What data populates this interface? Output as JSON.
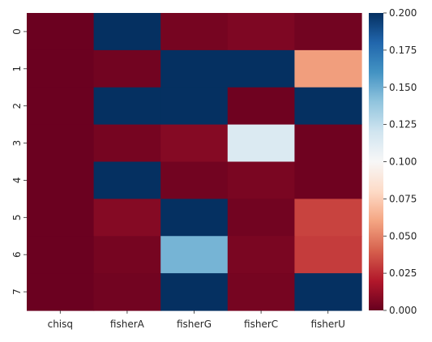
{
  "chart_data": {
    "type": "heatmap",
    "title": "",
    "xlabel": "",
    "ylabel": "",
    "x_categories": [
      "chisq",
      "fisherA",
      "fisherG",
      "fisherC",
      "fisherU"
    ],
    "y_categories": [
      "0",
      "1",
      "2",
      "3",
      "4",
      "5",
      "6",
      "7"
    ],
    "values": [
      [
        0.001,
        0.2,
        0.004,
        0.006,
        0.003
      ],
      [
        0.001,
        0.003,
        0.2,
        0.2,
        0.058
      ],
      [
        0.001,
        0.2,
        0.2,
        0.002,
        0.2
      ],
      [
        0.001,
        0.004,
        0.008,
        0.115,
        0.002
      ],
      [
        0.001,
        0.2,
        0.003,
        0.005,
        0.002
      ],
      [
        0.001,
        0.008,
        0.2,
        0.003,
        0.032
      ],
      [
        0.001,
        0.004,
        0.147,
        0.005,
        0.03
      ],
      [
        0.001,
        0.003,
        0.2,
        0.004,
        0.2
      ]
    ],
    "colorbar": {
      "min": 0.0,
      "max": 0.2,
      "colormap": "RdBu",
      "ticks": [
        "0.000",
        "0.025",
        "0.050",
        "0.075",
        "0.100",
        "0.125",
        "0.150",
        "0.175",
        "0.200"
      ]
    },
    "grid": false,
    "legend": "none"
  }
}
